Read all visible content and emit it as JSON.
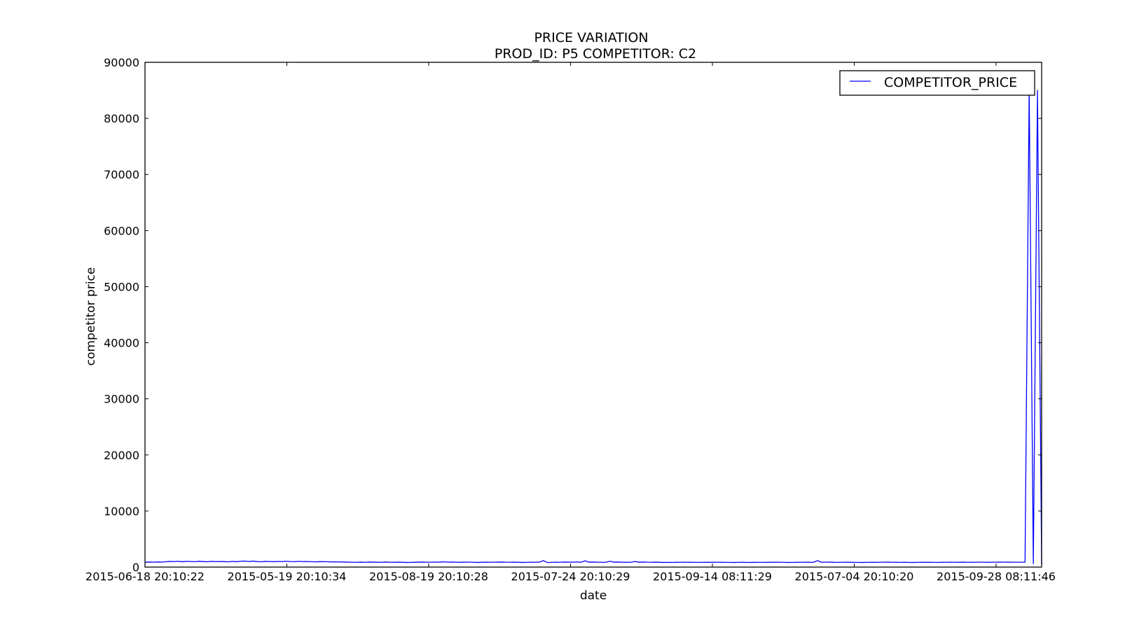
{
  "chart_data": {
    "type": "line",
    "title": "PRICE VARIATION",
    "subtitle": "PROD_ID: P5 COMPETITOR: C2",
    "xlabel": "date",
    "ylabel": "competitor price",
    "x_tick_labels": [
      "2015-06-18 20:10:22",
      "2015-05-19 20:10:34",
      "2015-08-19 20:10:28",
      "2015-07-24 20:10:29",
      "2015-09-14 08:11:29",
      "2015-07-04 20:10:20",
      "2015-09-28 08:11:46"
    ],
    "y_ticks": [
      0,
      10000,
      20000,
      30000,
      40000,
      50000,
      60000,
      70000,
      80000,
      90000
    ],
    "ylim": [
      0,
      90000
    ],
    "grid": false,
    "legend_position": "top-right",
    "series": [
      {
        "name": "COMPETITOR_PRICE",
        "color": "#0000ff",
        "values": [
          880,
          900,
          870,
          910,
          890,
          950,
          1020,
          980,
          1050,
          960,
          1030,
          1000,
          970,
          1040,
          990,
          950,
          1020,
          980,
          1000,
          990,
          940,
          1010,
          960,
          1050,
          1080,
          1000,
          1070,
          990,
          950,
          1020,
          1000,
          960,
          1010,
          980,
          1050,
          1000,
          970,
          1030,
          980,
          1000,
          970,
          940,
          960,
          980,
          950,
          930,
          940,
          920,
          900,
          880,
          860,
          840,
          880,
          860,
          900,
          880,
          850,
          870,
          900,
          860,
          850,
          880,
          850,
          820,
          830,
          850,
          880,
          900,
          860,
          870,
          880,
          900,
          940,
          870,
          900,
          870,
          850,
          880,
          870,
          860,
          820,
          850,
          880,
          860,
          870,
          880,
          900,
          870,
          860,
          880,
          850,
          820,
          840,
          870,
          860,
          880,
          1150,
          800,
          840,
          870,
          860,
          900,
          880,
          870,
          920,
          850,
          1120,
          880,
          900,
          870,
          850,
          860,
          1050,
          880,
          900,
          870,
          850,
          860,
          1000,
          880,
          900,
          870,
          860,
          880,
          850,
          820,
          840,
          830,
          850,
          860,
          870,
          850,
          860,
          830,
          840,
          860,
          850,
          870,
          860,
          850,
          840,
          830,
          820,
          840,
          850,
          830,
          820,
          850,
          840,
          830,
          860,
          850,
          870,
          860,
          840,
          820,
          830,
          850,
          860,
          870,
          850,
          840,
          1150,
          860,
          870,
          880,
          850,
          840,
          860,
          870,
          850,
          840,
          830,
          820,
          840,
          860,
          850,
          860,
          870,
          880,
          860,
          850,
          840,
          850,
          830,
          820,
          840,
          850,
          860,
          850,
          840,
          830,
          850,
          860,
          870,
          860,
          850,
          880,
          860,
          850,
          860,
          870,
          870,
          850,
          860,
          870,
          880,
          870,
          880,
          870,
          860,
          870,
          880,
          85000,
          600,
          85000,
          500
        ]
      }
    ]
  }
}
